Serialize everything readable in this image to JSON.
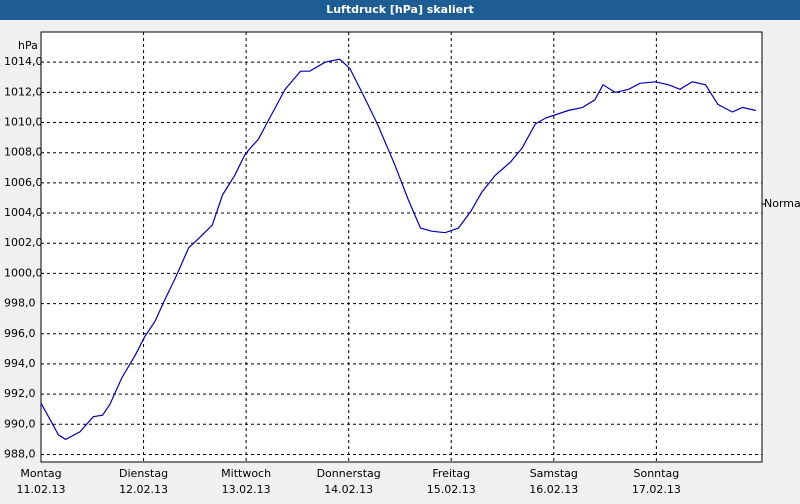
{
  "chart_data": {
    "type": "line",
    "title": "Luftdruck [hPa] skaliert",
    "y_unit": "hPa",
    "xlim": [
      0,
      7.03
    ],
    "ylim": [
      987.5,
      1016
    ],
    "xticks": [
      {
        "value": 0,
        "label": "Montag"
      },
      {
        "value": 1,
        "label": "Dienstag"
      },
      {
        "value": 2,
        "label": "Mittwoch"
      },
      {
        "value": 3,
        "label": "Donnerstag"
      },
      {
        "value": 4,
        "label": "Freitag"
      },
      {
        "value": 5,
        "label": "Samstag"
      },
      {
        "value": 6,
        "label": "Sonntag"
      }
    ],
    "xtick_dates": [
      "11.02.13",
      "12.02.13",
      "13.02.13",
      "14.02.13",
      "15.02.13",
      "16.02.13",
      "17.02.13"
    ],
    "yticks": [
      {
        "value": 988,
        "label": "988,0"
      },
      {
        "value": 990,
        "label": "990,0"
      },
      {
        "value": 992,
        "label": "992,0"
      },
      {
        "value": 994,
        "label": "994,0"
      },
      {
        "value": 996,
        "label": "996,0"
      },
      {
        "value": 998,
        "label": "998,0"
      },
      {
        "value": 1000,
        "label": "1000,0"
      },
      {
        "value": 1002,
        "label": "1002,0"
      },
      {
        "value": 1004,
        "label": "1004,0"
      },
      {
        "value": 1006,
        "label": "1006,0"
      },
      {
        "value": 1008,
        "label": "1008,0"
      },
      {
        "value": 1010,
        "label": "1010,0"
      },
      {
        "value": 1012,
        "label": "1012,0"
      },
      {
        "value": 1014,
        "label": "1014,0"
      }
    ],
    "grid": true,
    "normal": {
      "label": "Normal",
      "value": 1004.6
    },
    "series": [
      {
        "color": "#0000c0",
        "x": [
          0,
          0.09,
          0.17,
          0.24,
          0.38,
          0.51,
          0.6,
          0.67,
          0.79,
          0.92,
          1.01,
          1.11,
          1.21,
          1.31,
          1.44,
          1.55,
          1.67,
          1.77,
          1.89,
          1.99,
          2.12,
          2.23,
          2.38,
          2.53,
          2.62,
          2.77,
          2.91,
          3.01,
          3.13,
          3.28,
          3.45,
          3.58,
          3.7,
          3.81,
          3.94,
          4.07,
          4.19,
          4.3,
          4.43,
          4.58,
          4.69,
          4.82,
          4.92,
          5.01,
          5.14,
          5.28,
          5.4,
          5.48,
          5.6,
          5.73,
          5.84,
          5.99,
          6.12,
          6.23,
          6.35,
          6.48,
          6.6,
          6.74,
          6.84,
          6.97
        ],
        "values": [
          991.4,
          990.3,
          989.3,
          989.0,
          989.5,
          990.5,
          990.6,
          991.3,
          993.1,
          994.6,
          995.8,
          996.8,
          998.3,
          999.7,
          1001.7,
          1002.4,
          1003.2,
          1005.2,
          1006.5,
          1007.9,
          1008.9,
          1010.3,
          1012.2,
          1013.4,
          1013.4,
          1014.0,
          1014.2,
          1013.6,
          1012.0,
          1009.9,
          1007.2,
          1004.9,
          1003.0,
          1002.8,
          1002.7,
          1003.0,
          1004.1,
          1005.4,
          1006.5,
          1007.4,
          1008.3,
          1009.9,
          1010.3,
          1010.5,
          1010.8,
          1011.0,
          1011.5,
          1012.5,
          1012.0,
          1012.2,
          1012.6,
          1012.7,
          1012.5,
          1012.2,
          1012.7,
          1012.5,
          1011.2,
          1010.7,
          1011.0,
          1010.8
        ]
      }
    ]
  }
}
